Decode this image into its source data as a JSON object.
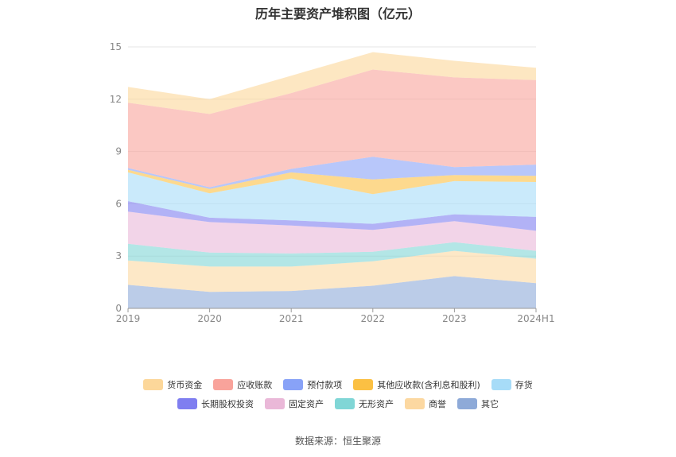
{
  "title": "历年主要资产堆积图（亿元）",
  "source": "数据来源：恒生聚源",
  "chart_data": {
    "type": "area",
    "stacked": true,
    "categories": [
      "2019",
      "2020",
      "2021",
      "2022",
      "2023",
      "2024H1"
    ],
    "ylim": [
      0,
      15
    ],
    "yticks": [
      0,
      3,
      6,
      9,
      12,
      15
    ],
    "grid": true,
    "legend_position": "bottom",
    "series": [
      {
        "name": "其它",
        "color": "#8eaad8",
        "values": [
          1.35,
          0.95,
          1.0,
          1.3,
          1.85,
          1.45
        ]
      },
      {
        "name": "商誉",
        "color": "#fcd8a1",
        "values": [
          1.4,
          1.45,
          1.4,
          1.4,
          1.45,
          1.4
        ]
      },
      {
        "name": "无形资产",
        "color": "#80d6d6",
        "values": [
          0.95,
          0.8,
          0.75,
          0.55,
          0.5,
          0.45
        ]
      },
      {
        "name": "固定资产",
        "color": "#eab8d8",
        "values": [
          1.85,
          1.75,
          1.6,
          1.25,
          1.2,
          1.15
        ]
      },
      {
        "name": "长期股权投资",
        "color": "#7f7ef0",
        "values": [
          0.6,
          0.25,
          0.3,
          0.35,
          0.4,
          0.8
        ]
      },
      {
        "name": "存货",
        "color": "#a7dcf8",
        "values": [
          1.65,
          1.4,
          2.4,
          1.7,
          1.9,
          2.0
        ]
      },
      {
        "name": "其他应收款(含利息和股利)",
        "color": "#fbc043",
        "values": [
          0.15,
          0.25,
          0.35,
          0.85,
          0.35,
          0.35
        ]
      },
      {
        "name": "预付款项",
        "color": "#88a2f7",
        "values": [
          0.1,
          0.1,
          0.2,
          1.3,
          0.45,
          0.65
        ]
      },
      {
        "name": "应收账款",
        "color": "#f9a39b",
        "values": [
          3.75,
          4.2,
          4.35,
          5.0,
          5.15,
          4.85
        ]
      },
      {
        "name": "货币资金",
        "color": "#fcd79a",
        "values": [
          0.9,
          0.85,
          1.0,
          1.0,
          0.95,
          0.7
        ]
      }
    ],
    "legend_rows": [
      [
        "货币资金",
        "应收账款",
        "预付款项",
        "其他应收款(含利息和股利)",
        "存货"
      ],
      [
        "长期股权投资",
        "固定资产",
        "无形资产",
        "商誉",
        "其它"
      ]
    ]
  }
}
